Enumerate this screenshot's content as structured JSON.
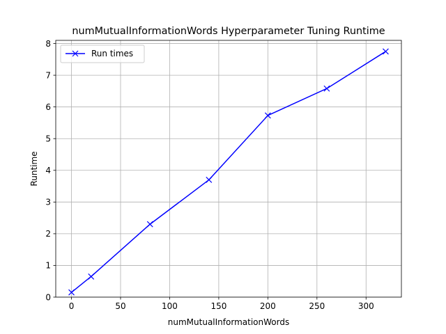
{
  "chart_data": {
    "type": "line",
    "title": "numMutualInformationWords Hyperparameter Tuning Runtime",
    "xlabel": "numMutualInformationWords",
    "ylabel": "Runtime",
    "xlim": [
      -16,
      336
    ],
    "ylim": [
      0,
      8.1
    ],
    "xticks": [
      0,
      50,
      100,
      150,
      200,
      250,
      300
    ],
    "yticks": [
      0,
      1,
      2,
      3,
      4,
      5,
      6,
      7,
      8
    ],
    "grid": true,
    "legend_position": "upper-left",
    "series": [
      {
        "name": "Run times",
        "color": "#0000ff",
        "marker": "x",
        "x": [
          0,
          20,
          80,
          140,
          200,
          260,
          320
        ],
        "y": [
          0.15,
          0.65,
          2.3,
          3.7,
          5.73,
          6.58,
          7.75
        ]
      }
    ]
  }
}
